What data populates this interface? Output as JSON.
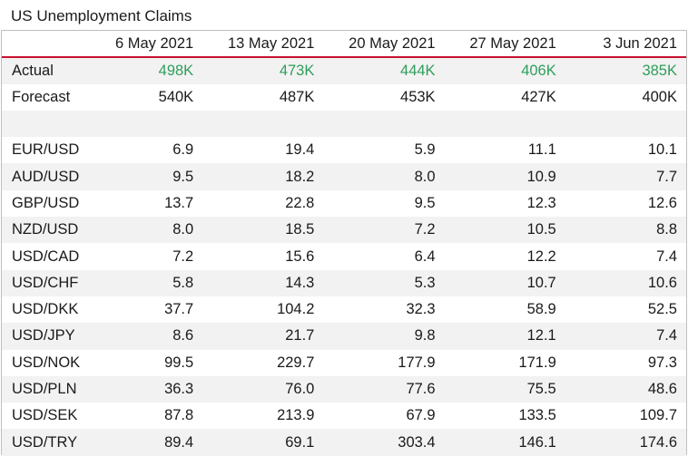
{
  "title": "US Unemployment Claims",
  "colors": {
    "accent_red": "#c8102e",
    "actual_green": "#2e9e5b",
    "row_alt": "#f2f2f2"
  },
  "columns": [
    "",
    "6 May 2021",
    "13 May 2021",
    "20 May 2021",
    "27 May 2021",
    "3 Jun 2021"
  ],
  "claims": [
    {
      "label": "Actual",
      "values": [
        "498K",
        "473K",
        "444K",
        "406K",
        "385K"
      ]
    },
    {
      "label": "Forecast",
      "values": [
        "540K",
        "487K",
        "453K",
        "427K",
        "400K"
      ]
    }
  ],
  "pairs": [
    {
      "label": "EUR/USD",
      "values": [
        "6.9",
        "19.4",
        "5.9",
        "11.1",
        "10.1"
      ]
    },
    {
      "label": "AUD/USD",
      "values": [
        "9.5",
        "18.2",
        "8.0",
        "10.9",
        "7.7"
      ]
    },
    {
      "label": "GBP/USD",
      "values": [
        "13.7",
        "22.8",
        "9.5",
        "12.3",
        "12.6"
      ]
    },
    {
      "label": "NZD/USD",
      "values": [
        "8.0",
        "18.5",
        "7.2",
        "10.5",
        "8.8"
      ]
    },
    {
      "label": "USD/CAD",
      "values": [
        "7.2",
        "15.6",
        "6.4",
        "12.2",
        "7.4"
      ]
    },
    {
      "label": "USD/CHF",
      "values": [
        "5.8",
        "14.3",
        "5.3",
        "10.7",
        "10.6"
      ]
    },
    {
      "label": "USD/DKK",
      "values": [
        "37.7",
        "104.2",
        "32.3",
        "58.9",
        "52.5"
      ]
    },
    {
      "label": "USD/JPY",
      "values": [
        "8.6",
        "21.7",
        "9.8",
        "12.1",
        "7.4"
      ]
    },
    {
      "label": "USD/NOK",
      "values": [
        "99.5",
        "229.7",
        "177.9",
        "171.9",
        "97.3"
      ]
    },
    {
      "label": "USD/PLN",
      "values": [
        "36.3",
        "76.0",
        "77.6",
        "75.5",
        "48.6"
      ]
    },
    {
      "label": "USD/SEK",
      "values": [
        "87.8",
        "213.9",
        "67.9",
        "133.5",
        "109.7"
      ]
    },
    {
      "label": "USD/TRY",
      "values": [
        "89.4",
        "69.1",
        "303.4",
        "146.1",
        "174.6"
      ]
    }
  ]
}
